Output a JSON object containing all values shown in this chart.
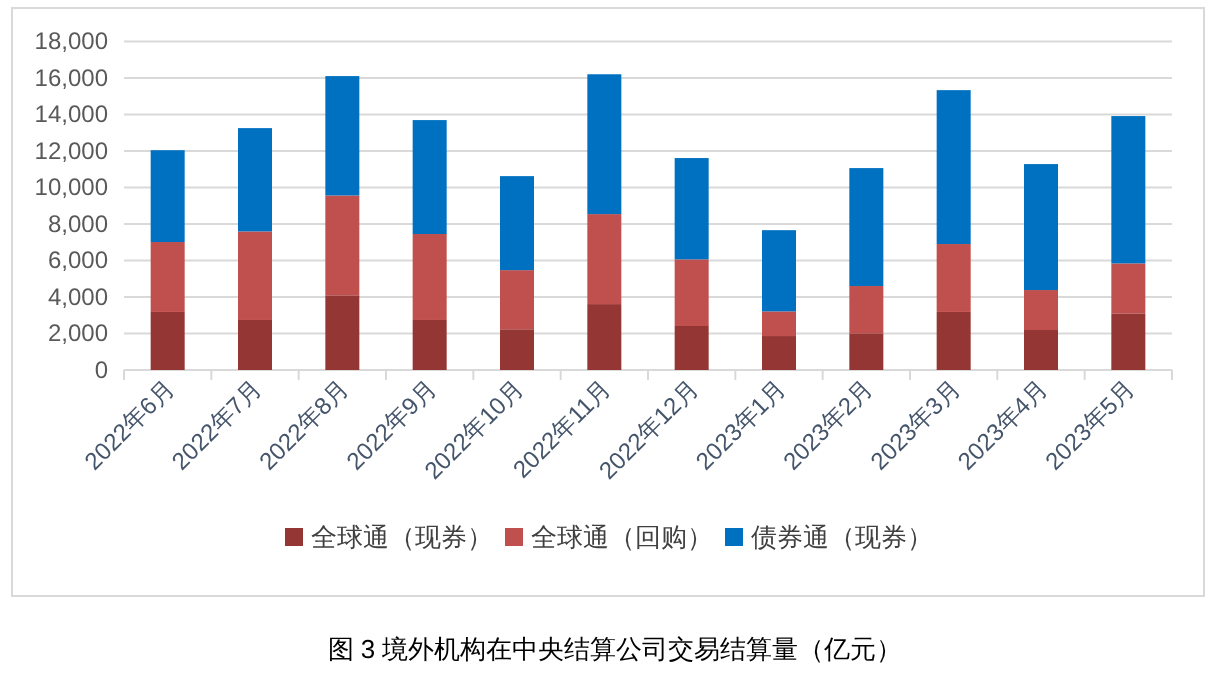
{
  "chart_data": {
    "type": "bar",
    "stacked": true,
    "title": "图 3  境外机构在中央结算公司交易结算量（亿元）",
    "categories": [
      "2022年6月",
      "2022年7月",
      "2022年8月",
      "2022年9月",
      "2022年10月",
      "2022年11月",
      "2022年12月",
      "2023年1月",
      "2023年2月",
      "2023年3月",
      "2023年4月",
      "2023年5月"
    ],
    "series": [
      {
        "name": "全球通（现券）",
        "color": "#943634",
        "values": [
          3180,
          2740,
          4090,
          2740,
          2230,
          3610,
          2410,
          1860,
          2010,
          3180,
          2190,
          3100
        ]
      },
      {
        "name": "全球通（回购）",
        "color": "#c0504d",
        "values": [
          3830,
          4850,
          5470,
          4710,
          3240,
          4930,
          3650,
          1350,
          2590,
          3720,
          2190,
          2740
        ]
      },
      {
        "name": "债券通（现券）",
        "color": "#0070c0",
        "values": [
          5030,
          5660,
          6540,
          6240,
          5150,
          7660,
          5550,
          4450,
          6460,
          8430,
          6900,
          8070
        ]
      }
    ],
    "ylim": [
      0,
      18000
    ],
    "yticks": [
      {
        "value": 0,
        "label": "0"
      },
      {
        "value": 2000,
        "label": "2,000"
      },
      {
        "value": 4000,
        "label": "4,000"
      },
      {
        "value": 6000,
        "label": "6,000"
      },
      {
        "value": 8000,
        "label": "8,000"
      },
      {
        "value": 10000,
        "label": "10,000"
      },
      {
        "value": 12000,
        "label": "12,000"
      },
      {
        "value": 14000,
        "label": "14,000"
      },
      {
        "value": 16000,
        "label": "16,000"
      },
      {
        "value": 18000,
        "label": "18,000"
      }
    ],
    "grid": "y",
    "legend": "bottom"
  }
}
